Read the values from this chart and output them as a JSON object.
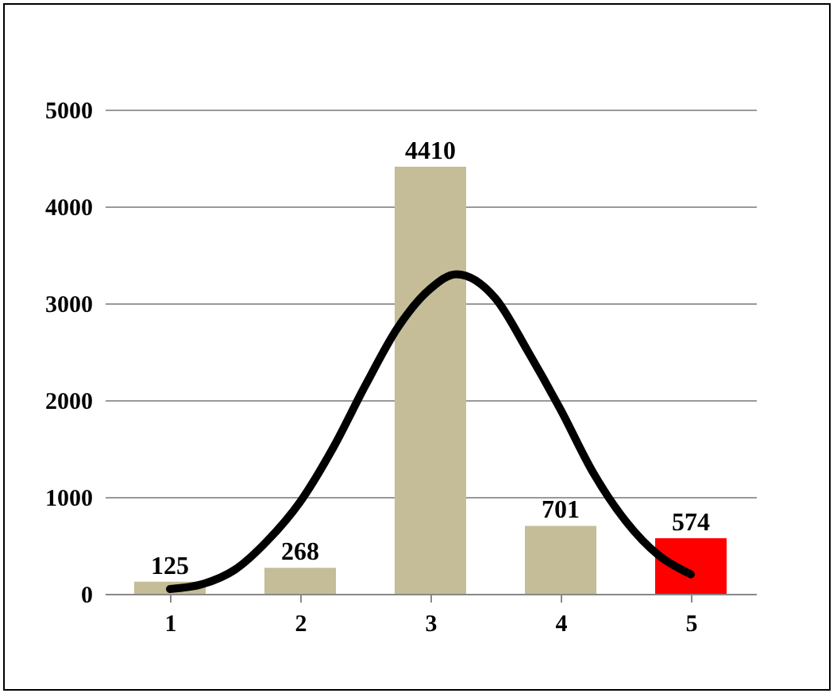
{
  "chart_data": {
    "type": "bar",
    "x": [
      1,
      2,
      3,
      4,
      5
    ],
    "series": [
      {
        "colors": [
          "#c4bd97",
          "#c4bd97",
          "#c4bd97",
          "#c4bd97",
          "#ff0000"
        ],
        "values": [
          125,
          268,
          4410,
          701,
          574
        ],
        "value_labels": [
          "125",
          "268",
          "4410",
          "701",
          "574"
        ]
      },
      {
        "type": "line",
        "color": "#000000",
        "x": [
          1,
          1.25,
          1.5,
          1.75,
          2,
          2.25,
          2.5,
          2.75,
          3,
          3.2,
          3.5,
          3.75,
          4,
          4.25,
          4.5,
          4.75,
          5
        ],
        "values": [
          50,
          100,
          250,
          550,
          950,
          1500,
          2150,
          2750,
          3150,
          3300,
          3050,
          2500,
          1900,
          1250,
          750,
          400,
          200
        ]
      }
    ],
    "xlim": [
      0.5,
      5.5
    ],
    "xticks": [
      1,
      2,
      3,
      4,
      5
    ],
    "ylim": [
      0,
      5000
    ],
    "yticks": [
      0,
      1000,
      2000,
      3000,
      4000,
      5000
    ],
    "grid": "y",
    "marker": "none",
    "line_style": "solid"
  }
}
